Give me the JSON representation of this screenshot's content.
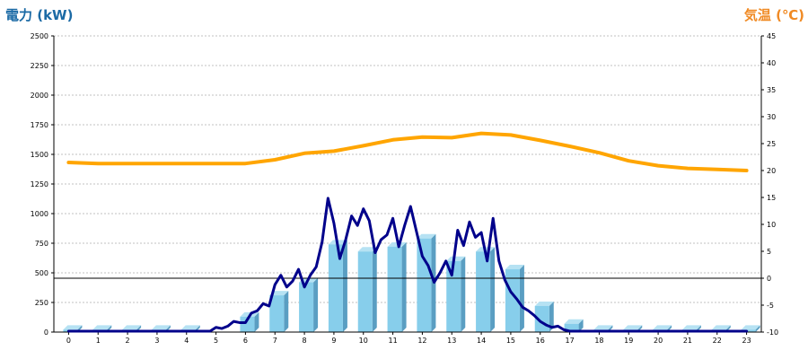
{
  "chart_data": {
    "type": "bar+line",
    "left_axis_label": "電力 (kW)",
    "right_axis_label": "気温 (℃)",
    "x_categories": [
      "0",
      "1",
      "2",
      "3",
      "4",
      "5",
      "6",
      "7",
      "8",
      "9",
      "10",
      "11",
      "12",
      "13",
      "14",
      "15",
      "16",
      "17",
      "18",
      "19",
      "20",
      "21",
      "22",
      "23"
    ],
    "left_ylim": [
      0,
      2500
    ],
    "left_ticks": [
      0,
      250,
      500,
      750,
      1000,
      1250,
      1500,
      1750,
      2000,
      2250,
      2500
    ],
    "right_ylim": [
      -10,
      45
    ],
    "right_ticks": [
      -10,
      -5,
      0,
      5,
      10,
      15,
      20,
      25,
      30,
      35,
      40,
      45
    ],
    "grid": "horizontal dotted",
    "reference_line": {
      "axis": "right",
      "value": 0
    },
    "series": [
      {
        "kind": "bar",
        "axis": "left",
        "color": "#87ceeb",
        "values": [
          20,
          20,
          20,
          20,
          20,
          0,
          130,
          310,
          420,
          740,
          680,
          720,
          790,
          600,
          680,
          530,
          220,
          70,
          20,
          20,
          20,
          20,
          20,
          20
        ]
      },
      {
        "kind": "line",
        "axis": "left",
        "color": "#00008b",
        "x": [
          0,
          1,
          2,
          3,
          4,
          4.8,
          5,
          5.2,
          5.4,
          5.6,
          5.8,
          6,
          6.2,
          6.4,
          6.6,
          6.8,
          7,
          7.2,
          7.4,
          7.6,
          7.8,
          8,
          8.2,
          8.4,
          8.6,
          8.8,
          9,
          9.2,
          9.4,
          9.6,
          9.8,
          10,
          10.2,
          10.4,
          10.6,
          10.8,
          11,
          11.2,
          11.4,
          11.6,
          11.8,
          12,
          12.2,
          12.4,
          12.6,
          12.8,
          13,
          13.2,
          13.4,
          13.6,
          13.8,
          14,
          14.2,
          14.4,
          14.6,
          14.8,
          15,
          15.2,
          15.4,
          15.6,
          15.8,
          16,
          16.2,
          16.4,
          16.6,
          16.8,
          17,
          17.2,
          17.4,
          18,
          19,
          20,
          21,
          22,
          23
        ],
        "values": [
          0,
          0,
          0,
          0,
          0,
          0,
          40,
          30,
          50,
          90,
          80,
          80,
          160,
          180,
          240,
          220,
          400,
          480,
          380,
          430,
          530,
          380,
          480,
          550,
          760,
          1130,
          920,
          620,
          780,
          980,
          900,
          1040,
          940,
          670,
          780,
          820,
          960,
          720,
          900,
          1060,
          850,
          640,
          560,
          420,
          500,
          600,
          480,
          860,
          730,
          930,
          800,
          840,
          600,
          960,
          600,
          440,
          340,
          280,
          210,
          180,
          140,
          90,
          60,
          40,
          50,
          20,
          0,
          0,
          0,
          0,
          0,
          0,
          0,
          0,
          0
        ]
      },
      {
        "kind": "line",
        "axis": "right",
        "color": "#ffa500",
        "x": [
          0,
          1,
          2,
          3,
          4,
          5,
          6,
          7,
          8,
          9,
          10,
          11,
          12,
          13,
          14,
          15,
          16,
          17,
          18,
          19,
          20,
          21,
          22,
          23
        ],
        "values": [
          21.5,
          21.3,
          21.3,
          21.3,
          21.3,
          21.3,
          21.3,
          22,
          23.2,
          23.6,
          24.6,
          25.7,
          26.2,
          26.1,
          26.9,
          26.6,
          25.6,
          24.5,
          23.3,
          21.8,
          20.9,
          20.4,
          20.2,
          20
        ]
      }
    ]
  },
  "colors": {
    "left_axis_title": "#1b6aa5",
    "right_axis_title": "#f08a24",
    "bar_front": "#87ceeb",
    "bar_side": "#5a9ec2",
    "bar_top": "#b6e2f3",
    "gap_bar_front": "#7fbfe0",
    "gap_bar_side": "#4a8ab8",
    "temperature_line": "#ffa500",
    "power_line": "#00008b",
    "grid": "#c0c0c0"
  }
}
